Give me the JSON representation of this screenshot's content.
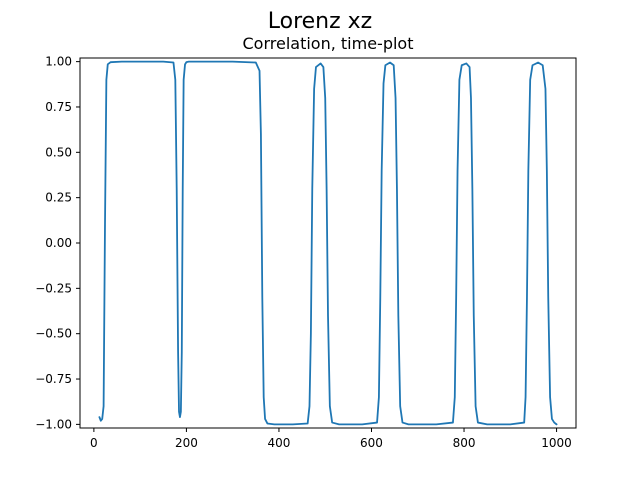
{
  "figure": {
    "suptitle": "Lorenz xz"
  },
  "chart_data": {
    "type": "line",
    "title": "Correlation, time-plot",
    "xlabel": "",
    "ylabel": "",
    "xlim": [
      -30,
      1042
    ],
    "ylim": [
      -1.02,
      1.02
    ],
    "xticks": [
      0,
      200,
      400,
      600,
      800,
      1000
    ],
    "xtick_labels": [
      "0",
      "200",
      "400",
      "600",
      "800",
      "1000"
    ],
    "yticks": [
      1.0,
      0.75,
      0.5,
      0.25,
      0.0,
      -0.25,
      -0.5,
      -0.75,
      -1.0
    ],
    "ytick_labels": [
      "1.00",
      "0.75",
      "0.50",
      "0.25",
      "0.00",
      "−0.25",
      "−0.50",
      "−0.75",
      "−1.00"
    ],
    "grid": false,
    "series": [
      {
        "color": "#1f77b4",
        "x": [
          12,
          15,
          18,
          21,
          24,
          27,
          30,
          36,
          60,
          100,
          150,
          172,
          176,
          179,
          182,
          184,
          186,
          188,
          190,
          192,
          194,
          197,
          200,
          205,
          230,
          300,
          350,
          358,
          361,
          364,
          367,
          370,
          375,
          390,
          430,
          462,
          466,
          469,
          472,
          476,
          480,
          490,
          496,
          500,
          503,
          506,
          510,
          515,
          530,
          580,
          612,
          616,
          619,
          622,
          626,
          630,
          640,
          648,
          652,
          655,
          658,
          662,
          667,
          680,
          740,
          776,
          780,
          783,
          786,
          790,
          795,
          805,
          812,
          815,
          818,
          821,
          825,
          830,
          850,
          900,
          930,
          933,
          936,
          939,
          943,
          948,
          960,
          970,
          976,
          979,
          982,
          986,
          990,
          995,
          1000
        ],
        "y": [
          -0.96,
          -0.98,
          -0.97,
          -0.9,
          0.1,
          0.9,
          0.985,
          0.997,
          1.0,
          1.0,
          1.0,
          0.995,
          0.9,
          0.3,
          -0.6,
          -0.93,
          -0.96,
          -0.93,
          -0.6,
          0.3,
          0.9,
          0.985,
          0.997,
          1.0,
          1.0,
          1.0,
          0.995,
          0.95,
          0.6,
          -0.3,
          -0.85,
          -0.97,
          -0.995,
          -1.0,
          -1.0,
          -0.995,
          -0.9,
          -0.5,
          0.3,
          0.85,
          0.97,
          0.99,
          0.97,
          0.8,
          0.3,
          -0.4,
          -0.9,
          -0.99,
          -1.0,
          -1.0,
          -0.99,
          -0.85,
          -0.3,
          0.4,
          0.88,
          0.98,
          0.995,
          0.98,
          0.8,
          0.3,
          -0.4,
          -0.9,
          -0.99,
          -1.0,
          -1.0,
          -0.99,
          -0.85,
          -0.3,
          0.4,
          0.9,
          0.98,
          0.99,
          0.97,
          0.8,
          0.3,
          -0.4,
          -0.9,
          -0.99,
          -1.0,
          -1.0,
          -0.99,
          -0.85,
          -0.3,
          0.4,
          0.9,
          0.98,
          0.995,
          0.98,
          0.85,
          0.4,
          -0.3,
          -0.85,
          -0.97,
          -0.99,
          -1.0
        ]
      }
    ]
  }
}
